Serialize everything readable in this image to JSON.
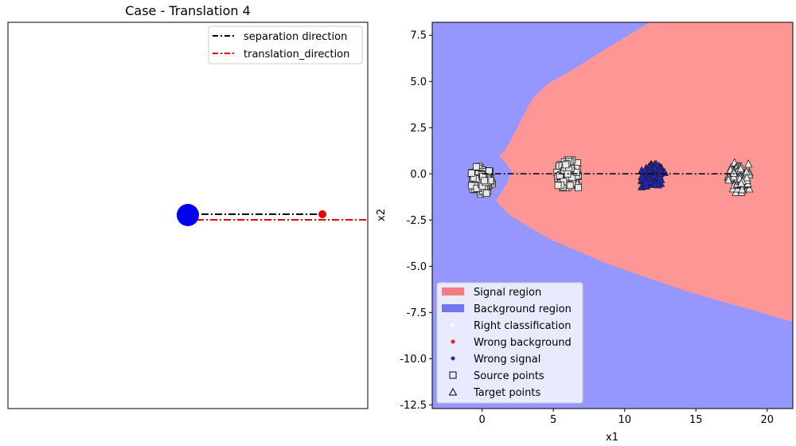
{
  "chart_data": [
    {
      "type": "line",
      "title": "Case - Translation 4",
      "xlabel": "",
      "ylabel": "",
      "axes_ticks": "none",
      "legend_position": "top-right",
      "legend": [
        "separation direction",
        "translation_direction"
      ],
      "points": {
        "source_circle_color": "#0000ee",
        "target_dot_color": "#ee0000"
      },
      "series": [
        {
          "name": "separation direction",
          "color": "#000000",
          "linestyle": "dash-dot"
        },
        {
          "name": "translation_direction",
          "color": "#ee0000",
          "linestyle": "dash-dot"
        }
      ]
    },
    {
      "type": "scatter",
      "title": "",
      "xlabel": "x1",
      "ylabel": "x2",
      "xlim": [
        -3.5,
        21.8
      ],
      "ylim": [
        -12.7,
        8.2
      ],
      "xticks": [
        0,
        5,
        10,
        15,
        20
      ],
      "yticks": [
        -12.5,
        -10.0,
        -7.5,
        -5.0,
        -2.5,
        0.0,
        2.5,
        5.0,
        7.5
      ],
      "legend_position": "lower-left",
      "legend": [
        "Signal region",
        "Background region",
        "Right classification",
        "Wrong background",
        "Wrong signal",
        "Source points",
        "Target points"
      ],
      "regions": {
        "signal_color": "#ff9696",
        "background_color": "#9696ff"
      },
      "separation_line": {
        "x": [
          0,
          18
        ],
        "y": [
          0,
          0
        ],
        "color": "#000000",
        "linestyle": "dash-dot"
      },
      "clusters": [
        {
          "name": "Source background",
          "marker": "square",
          "fill": "#e8e8e8",
          "center": [
            0,
            -0.35
          ],
          "spread": [
            0.75,
            0.75
          ],
          "count": 180
        },
        {
          "name": "Source signal",
          "marker": "square",
          "fill": "#e8e8e8",
          "center": [
            6,
            0
          ],
          "spread": [
            0.75,
            0.75
          ],
          "count": 150
        },
        {
          "name": "Target wrong signal",
          "marker": "triangle",
          "fill": "#2222cc",
          "center": [
            12,
            -0.1
          ],
          "spread": [
            0.8,
            0.6
          ],
          "count": 180
        },
        {
          "name": "Target background",
          "marker": "triangle",
          "fill": "#e8e8e8",
          "center": [
            18,
            -0.2
          ],
          "spread": [
            0.75,
            0.8
          ],
          "count": 120
        }
      ]
    }
  ]
}
